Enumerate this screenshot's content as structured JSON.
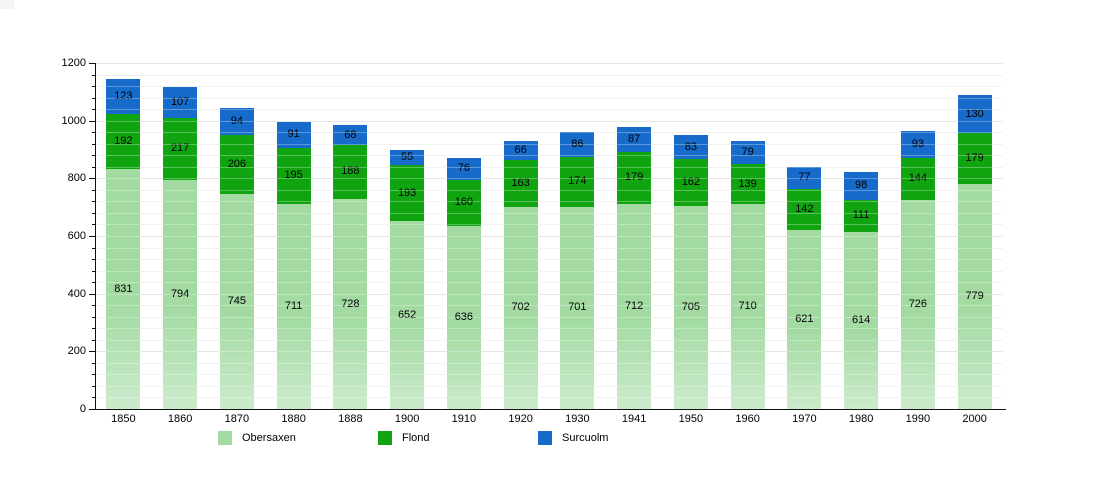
{
  "chart_data": {
    "type": "bar",
    "stacked": true,
    "title": "",
    "categories": [
      "1850",
      "1860",
      "1870",
      "1880",
      "1888",
      "1900",
      "1910",
      "1920",
      "1930",
      "1941",
      "1950",
      "1960",
      "1970",
      "1980",
      "1990",
      "2000"
    ],
    "series": [
      {
        "name": "Obersaxen",
        "color": "#a2daa2",
        "values": [
          831,
          794,
          745,
          711,
          728,
          652,
          636,
          702,
          701,
          712,
          705,
          710,
          621,
          614,
          726,
          779
        ]
      },
      {
        "name": "Flond",
        "color": "#10a510",
        "values": [
          192,
          217,
          206,
          195,
          188,
          193,
          160,
          163,
          174,
          179,
          162,
          139,
          142,
          111,
          144,
          179
        ]
      },
      {
        "name": "Surcuolm",
        "color": "#166bcb",
        "values": [
          123,
          107,
          94,
          91,
          68,
          55,
          76,
          66,
          86,
          87,
          83,
          79,
          77,
          98,
          93,
          130
        ]
      }
    ],
    "xlabel": "",
    "ylabel": "",
    "ylim": [
      0,
      1200
    ],
    "y_major_ticks": [
      0,
      200,
      400,
      600,
      800,
      1000,
      1200
    ],
    "y_minor_step": 40,
    "grid": true,
    "grid_minor_color": "#ececec",
    "grid_major_color": "#dcdcdc",
    "grid_overlay_color": "rgba(255,255,255,0.30)",
    "axis_color": "#111111",
    "legend_position": "bottom",
    "data_labels": true
  }
}
